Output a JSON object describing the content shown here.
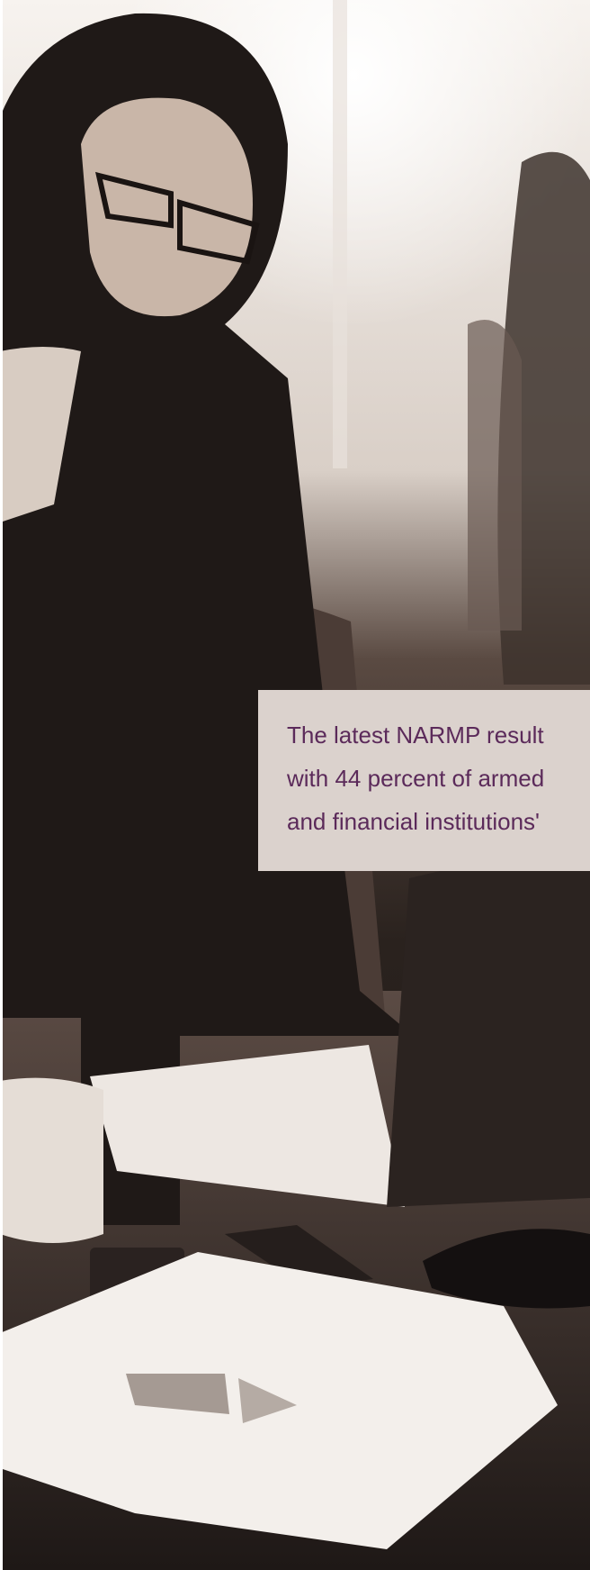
{
  "callout": {
    "lines": [
      "The latest NARMP result",
      "with 44 percent of armed",
      "and financial institutions'"
    ]
  }
}
